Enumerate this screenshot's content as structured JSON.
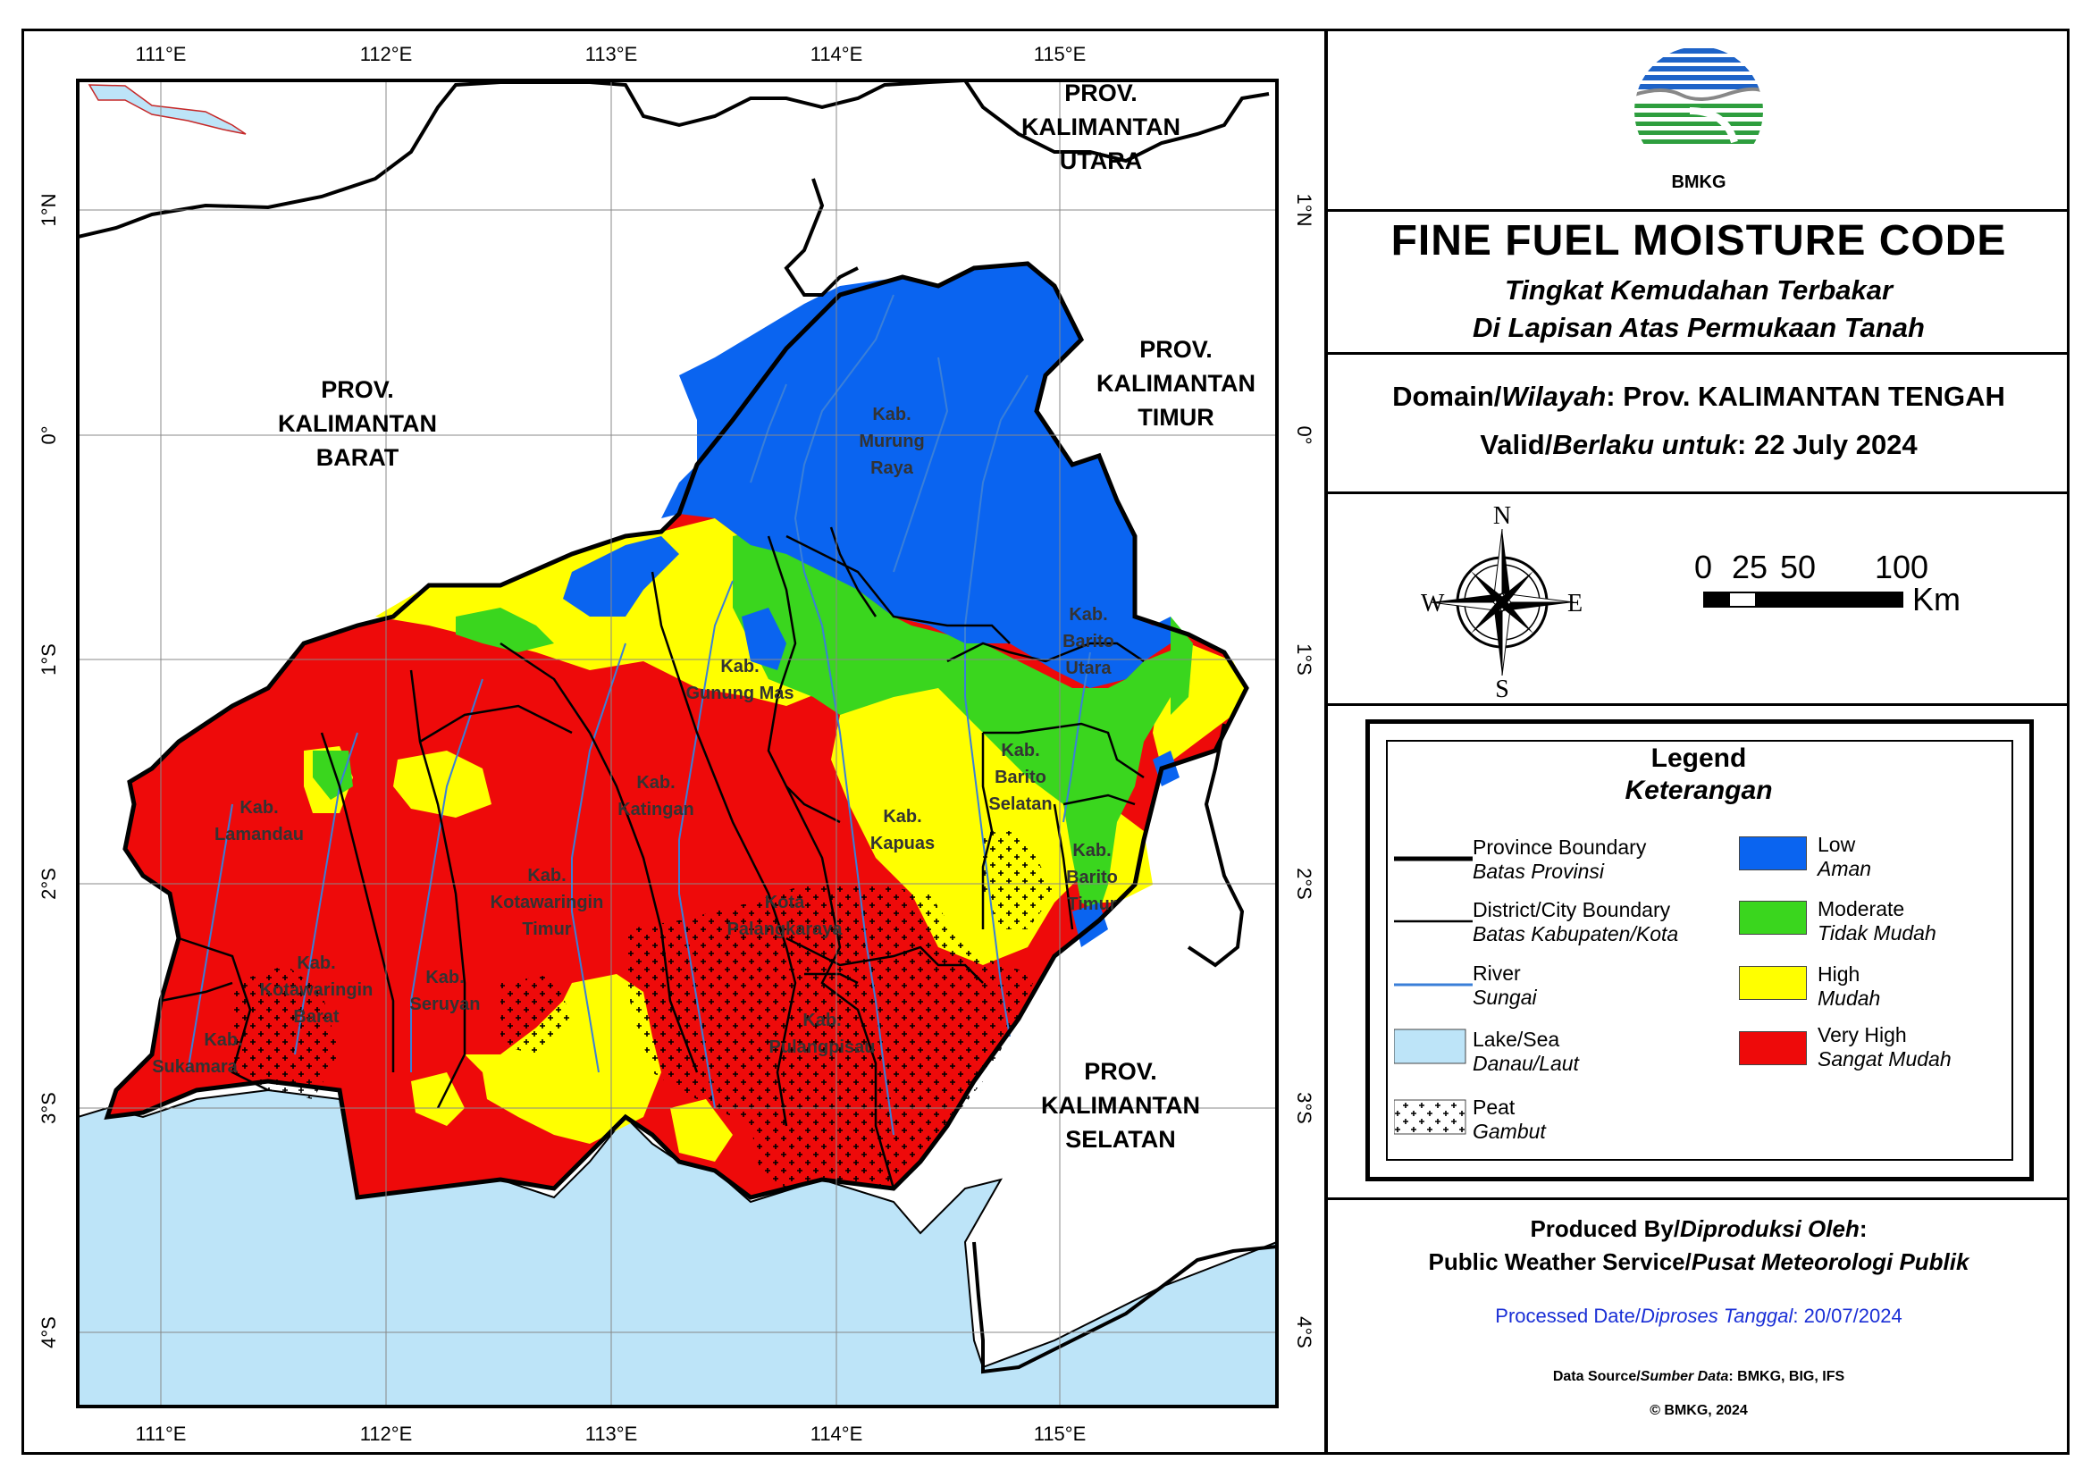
{
  "map": {
    "graticule_lon": [
      "111°E",
      "112°E",
      "113°E",
      "114°E",
      "115°E"
    ],
    "graticule_lat": [
      "1°N",
      "0°",
      "1°S",
      "2°S",
      "3°S",
      "4°S"
    ],
    "provinces": {
      "barat": [
        "PROV.",
        "KALIMANTAN",
        "BARAT"
      ],
      "utara": [
        "PROV.",
        "KALIMANTAN",
        "UTARA"
      ],
      "timur": [
        "PROV.",
        "KALIMANTAN",
        "TIMUR"
      ],
      "selatan": [
        "PROV.",
        "KALIMANTAN",
        "SELATAN"
      ]
    },
    "districts": {
      "murung_raya": [
        "Kab.",
        "Murung",
        "Raya"
      ],
      "barito_utara": [
        "Kab.",
        "Barito",
        "Utara"
      ],
      "gunung_mas": [
        "Kab.",
        "Gunung Mas"
      ],
      "barito_selatan": [
        "Kab.",
        "Barito",
        "Selatan"
      ],
      "katingan": [
        "Kab.",
        "Katingan"
      ],
      "kapuas": [
        "Kab.",
        "Kapuas"
      ],
      "lamandau": [
        "Kab.",
        "Lamandau"
      ],
      "barito_timur": [
        "Kab.",
        "Barito",
        "Timur"
      ],
      "kotim": [
        "Kab.",
        "Kotawaringin",
        "Timur"
      ],
      "palangkaraya": [
        "Kota",
        "Palangkaraya"
      ],
      "kobar": [
        "Kab.",
        "Kotawaringin",
        "Barat"
      ],
      "seruyan": [
        "Kab.",
        "Seruyan"
      ],
      "pulang_pisau": [
        "Kab.",
        "Pulangpisau"
      ],
      "sukamara": [
        "Kab.",
        "Sukamara"
      ]
    },
    "colors": {
      "low": "#0a64f0",
      "moderate": "#3ad61e",
      "high": "#ffff00",
      "very_high": "#ee0a0a",
      "sea": "#bde4f8",
      "river": "#3a7fd8"
    }
  },
  "header": {
    "logo_text": "BMKG",
    "title": "FINE FUEL MOISTURE CODE",
    "subtitle1": "Tingkat Kemudahan Terbakar",
    "subtitle2": "Di Lapisan Atas Permukaan Tanah"
  },
  "domain": {
    "label1": "Domain/",
    "label2": "Wilayah",
    "value": ": Prov. KALIMANTAN TENGAH",
    "valid1": "Valid/",
    "valid2": "Berlaku untuk",
    "valid_value": ": 22 July 2024"
  },
  "compass": {
    "n": "N",
    "s": "S",
    "e": "E",
    "w": "W"
  },
  "scale": {
    "labels": [
      "0",
      "25",
      "50",
      "100"
    ],
    "unit": "Km"
  },
  "legend": {
    "title": "Legend",
    "subtitle": "Keterangan",
    "items_left": [
      {
        "en": "Province Boundary",
        "id": "Batas Provinsi"
      },
      {
        "en": "District/City Boundary",
        "id": "Batas Kabupaten/Kota"
      },
      {
        "en": "River",
        "id": "Sungai"
      },
      {
        "en": "Lake/Sea",
        "id": "Danau/Laut"
      },
      {
        "en": "Peat",
        "id": "Gambut"
      }
    ],
    "items_right": [
      {
        "en": "Low",
        "id": "Aman"
      },
      {
        "en": "Moderate",
        "id": "Tidak Mudah"
      },
      {
        "en": "High",
        "id": "Mudah"
      },
      {
        "en": "Very High",
        "id": "Sangat Mudah"
      }
    ]
  },
  "footer": {
    "produced1": "Produced By/",
    "produced2": "Diproduksi Oleh",
    "produced3": ":",
    "service1": "Public Weather Service/",
    "service2": "Pusat Meteorologi Publik",
    "processed1": "Processed Date/",
    "processed2": "Diproses Tanggal",
    "processed3": ": 20/07/2024",
    "source1": "Data Source/",
    "source2": "Sumber Data",
    "source3": ": BMKG, BIG, IFS",
    "copyright": "© BMKG, 2024"
  }
}
